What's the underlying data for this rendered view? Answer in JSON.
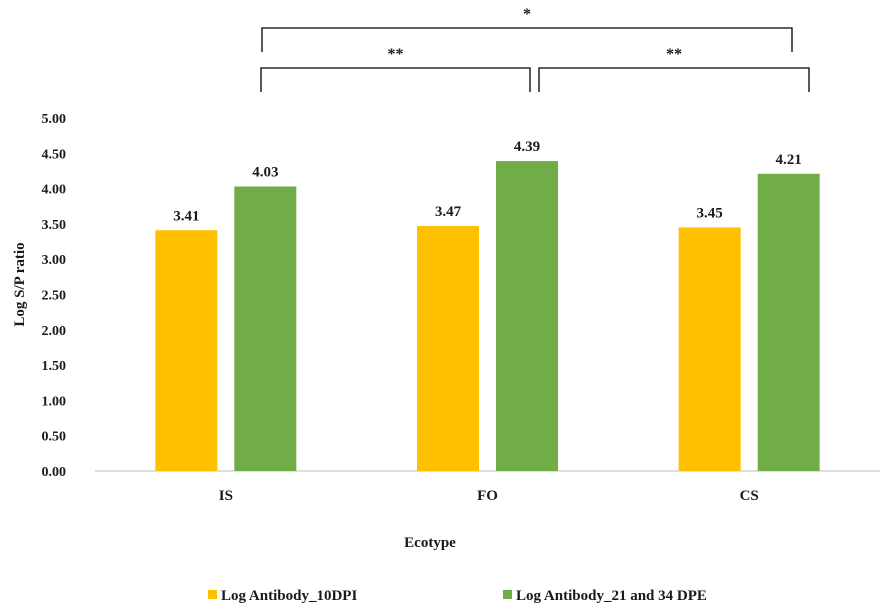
{
  "chart_data": {
    "type": "bar",
    "categories": [
      "IS",
      "FO",
      "CS"
    ],
    "series": [
      {
        "name": "Log Antibody_10DPI",
        "color": "#ffc000",
        "values": [
          3.41,
          3.47,
          3.45
        ]
      },
      {
        "name": "Log Antibody_21 and 34 DPE",
        "color": "#70ad47",
        "values": [
          4.03,
          4.39,
          4.21
        ]
      }
    ],
    "data_labels": {
      "Log Antibody_10DPI": [
        "3.41",
        "3.47",
        "3.45"
      ],
      "Log Antibody_21 and 34 DPE": [
        "4.03",
        "4.39",
        "4.21"
      ]
    },
    "title": "",
    "xlabel": "Ecotype",
    "ylabel": "Log S/P ratio",
    "ylim": [
      0,
      5
    ],
    "yticks": [
      "0.00",
      "0.50",
      "1.00",
      "1.50",
      "2.00",
      "2.50",
      "3.00",
      "3.50",
      "4.00",
      "4.50",
      "5.00"
    ],
    "grid": false,
    "legend_position": "bottom",
    "significance": [
      {
        "from": "IS",
        "to": "CS",
        "label": "*"
      },
      {
        "from": "IS",
        "to": "FO",
        "label": "**"
      },
      {
        "from": "FO",
        "to": "CS",
        "label": "**"
      }
    ]
  }
}
